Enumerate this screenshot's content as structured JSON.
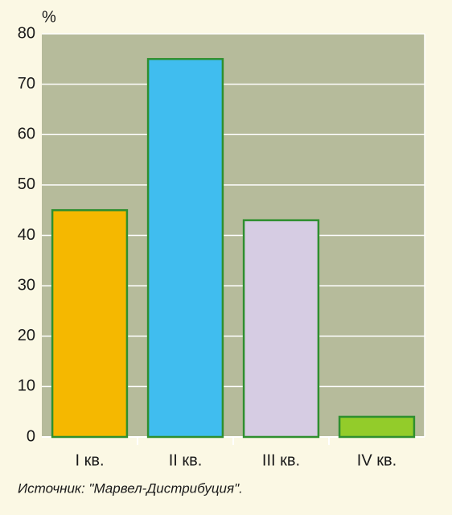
{
  "chart_data": {
    "type": "bar",
    "y_label": "%",
    "categories": [
      "I кв.",
      "II кв.",
      "III кв.",
      "IV кв."
    ],
    "values": [
      45,
      75,
      43,
      4
    ],
    "colors": [
      "#f5b800",
      "#40bdef",
      "#d6cce3",
      "#93cc2a"
    ],
    "border_color": "#2f8f2f",
    "ylim": [
      0,
      80
    ],
    "yticks": [
      0,
      10,
      20,
      30,
      40,
      50,
      60,
      70,
      80
    ],
    "grid": true,
    "source": "Источник: \"Марвел-Дистрибуция\"."
  }
}
